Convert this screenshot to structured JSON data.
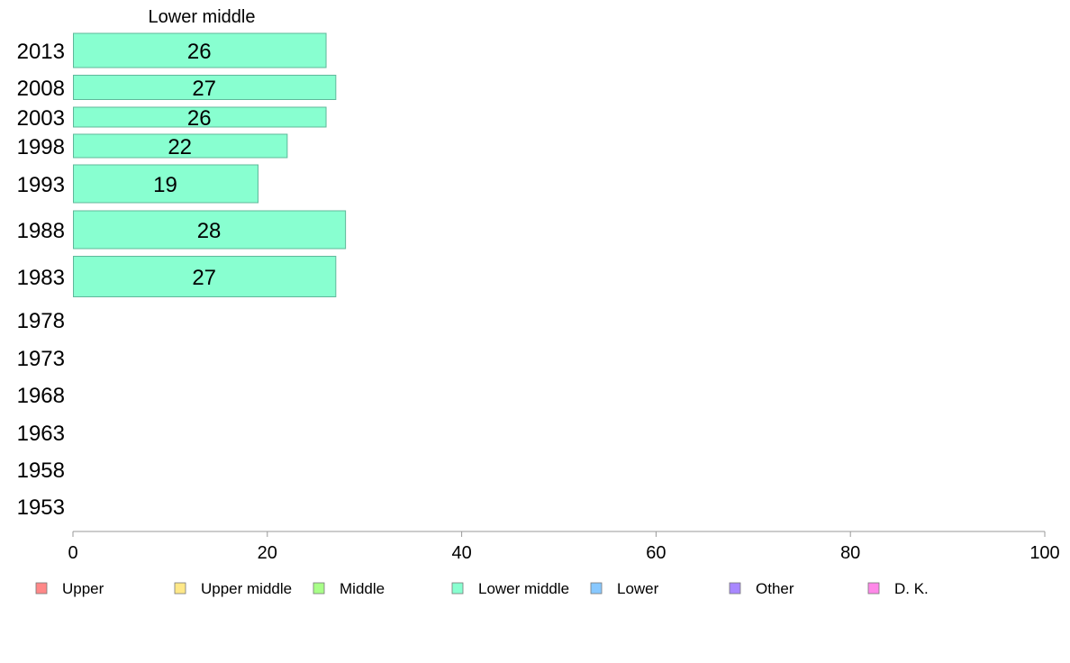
{
  "chart_data": {
    "type": "bar",
    "orientation": "horizontal",
    "title": "Lower middle",
    "categories": [
      "2013",
      "2008",
      "2003",
      "1998",
      "1993",
      "1988",
      "1983",
      "1978",
      "1973",
      "1968",
      "1963",
      "1958",
      "1953"
    ],
    "values": [
      26,
      27,
      26,
      22,
      19,
      28,
      27,
      null,
      null,
      null,
      null,
      null,
      null
    ],
    "value_labels": [
      "26",
      "27",
      "26",
      "22",
      "19",
      "28",
      "27",
      "",
      "",
      "",
      "",
      "",
      ""
    ],
    "xlim": [
      0,
      100
    ],
    "xticks": [
      "0",
      "20",
      "40",
      "60",
      "80",
      "100"
    ],
    "bar_color": "#88ffd0",
    "bar_border": "#5fb89a",
    "legend": [
      {
        "name": "Upper",
        "color": "#ff8888"
      },
      {
        "name": "Upper middle",
        "color": "#ffe888"
      },
      {
        "name": "Middle",
        "color": "#a8ff88"
      },
      {
        "name": "Lower middle",
        "color": "#88ffd0"
      },
      {
        "name": "Lower",
        "color": "#88c8ff"
      },
      {
        "name": "Other",
        "color": "#a888ff"
      },
      {
        "name": "D. K.",
        "color": "#ff88e8"
      }
    ],
    "legend_position": "bottom"
  }
}
